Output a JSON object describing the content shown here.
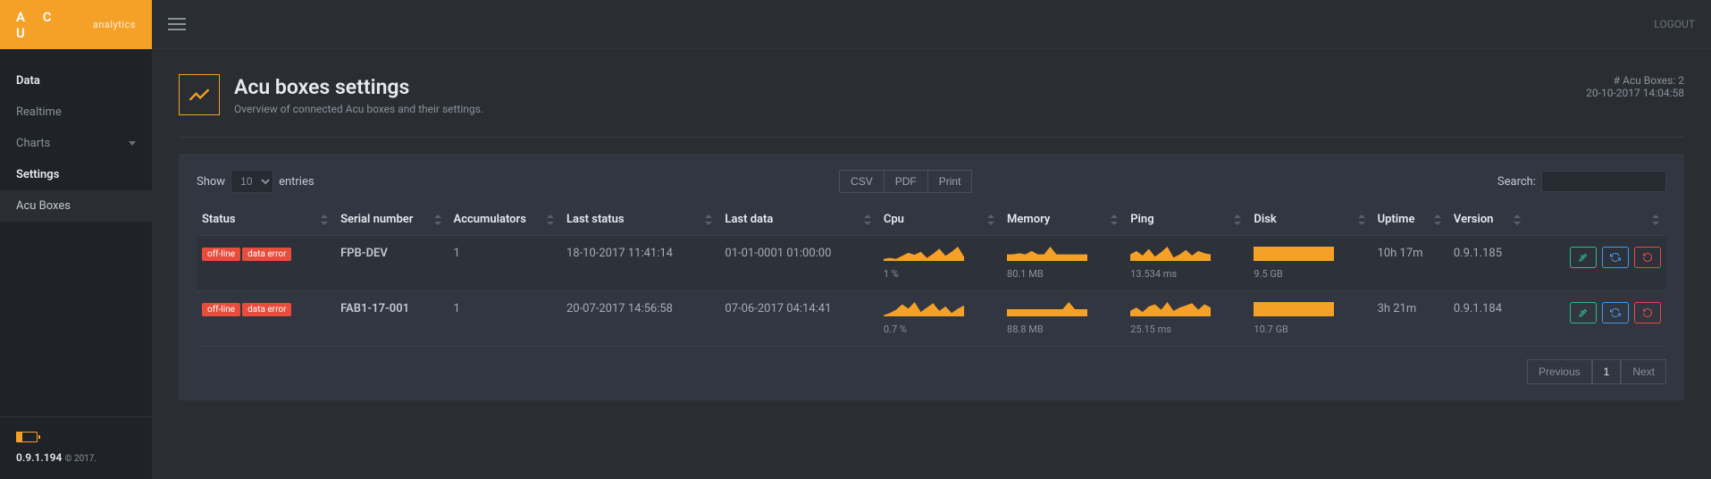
{
  "brand": {
    "name": "A C U",
    "sub": "analytics"
  },
  "nav": {
    "section1": "Data",
    "items1": [
      "Realtime",
      "Charts"
    ],
    "section2": "Settings",
    "items2": [
      "Acu Boxes"
    ]
  },
  "footer": {
    "version": "0.9.1.194",
    "copy": "© 2017."
  },
  "topbar": {
    "logout": "LOGOUT"
  },
  "page": {
    "title": "Acu boxes settings",
    "subtitle": "Overview of connected Acu boxes and their settings.",
    "count_label": "# Acu Boxes: 2",
    "timestamp": "20-10-2017 14:04:58"
  },
  "table_controls": {
    "show": "Show",
    "entries": "entries",
    "page_size": "10",
    "export": [
      "CSV",
      "PDF",
      "Print"
    ],
    "search_label": "Search:"
  },
  "columns": [
    "Status",
    "Serial number",
    "Accumulators",
    "Last status",
    "Last data",
    "Cpu",
    "Memory",
    "Ping",
    "Disk",
    "Uptime",
    "Version",
    ""
  ],
  "spark_color": "#f5a027",
  "spark_bg": "#313640",
  "rows": [
    {
      "badges": [
        "off-line",
        "data error"
      ],
      "serial": "FPB-DEV",
      "accumulators": "1",
      "last_status": "18-10-2017 11:41:14",
      "last_data": "01-01-0001 01:00:00",
      "cpu": {
        "value": "1 %",
        "series": [
          2,
          3,
          2,
          5,
          8,
          6,
          9,
          3,
          7,
          12,
          5,
          9,
          14,
          4
        ]
      },
      "memory": {
        "value": "80.1 MB",
        "series": [
          6,
          6,
          7,
          6,
          9,
          6,
          6,
          13,
          6,
          6,
          6,
          6,
          6,
          6
        ]
      },
      "ping": {
        "value": "13.534 ms",
        "series": [
          6,
          9,
          5,
          11,
          4,
          8,
          13,
          3,
          6,
          10,
          5,
          9,
          7,
          6
        ]
      },
      "disk": {
        "value": "9.5 GB",
        "series": [
          1,
          1,
          1,
          1,
          1,
          1,
          1,
          1,
          1,
          1,
          1,
          1,
          1,
          1
        ]
      },
      "uptime": "10h 17m",
      "version": "0.9.1.185"
    },
    {
      "badges": [
        "off-line",
        "data error"
      ],
      "serial": "FAB1-17-001",
      "accumulators": "1",
      "last_status": "20-07-2017 14:56:58",
      "last_data": "07-06-2017 04:14:41",
      "cpu": {
        "value": "0.7 %",
        "series": [
          1,
          3,
          6,
          11,
          7,
          13,
          4,
          8,
          12,
          5,
          9,
          3,
          7,
          10
        ]
      },
      "memory": {
        "value": "88.8 MB",
        "series": [
          6,
          6,
          6,
          6,
          6,
          6,
          6,
          6,
          6,
          6,
          12,
          6,
          6,
          6
        ]
      },
      "ping": {
        "value": "25.15 ms",
        "series": [
          5,
          8,
          4,
          9,
          11,
          6,
          13,
          5,
          8,
          10,
          12,
          6,
          11,
          8
        ]
      },
      "disk": {
        "value": "10.7 GB",
        "series": [
          1,
          1,
          1,
          1,
          1,
          1,
          1,
          1,
          1,
          1,
          1,
          1,
          1,
          1
        ]
      },
      "uptime": "3h 21m",
      "version": "0.9.1.184"
    }
  ],
  "pager": {
    "prev": "Previous",
    "next": "Next",
    "current": "1"
  }
}
